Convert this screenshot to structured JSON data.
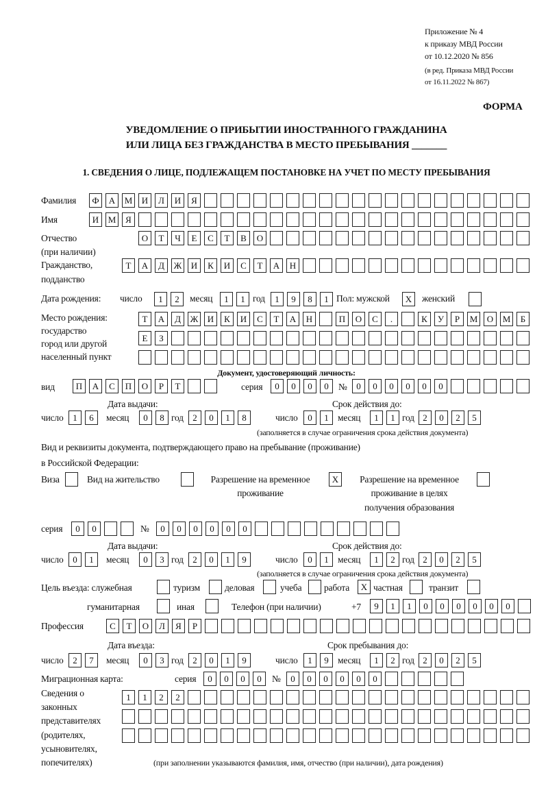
{
  "header": {
    "appendix": [
      "Приложение № 4",
      "к приказу МВД России",
      "от 10.12.2020 № 856"
    ],
    "edition": [
      "(в ред. Приказа МВД России",
      "от 16.11.2022 № 867)"
    ],
    "forma": "ФОРМА",
    "title1": "УВЕДОМЛЕНИЕ О ПРИБЫТИИ ИНОСТРАННОГО ГРАЖДАНИНА",
    "title2": "ИЛИ ЛИЦА БЕЗ ГРАЖДАНСТВА В МЕСТО ПРЕБЫВАНИЯ _______",
    "section1": "1. СВЕДЕНИЯ О ЛИЦЕ, ПОДЛЕЖАЩЕМ ПОСТАНОВКЕ НА УЧЕТ ПО МЕСТУ ПРЕБЫВАНИЯ"
  },
  "labels": {
    "surname": "Фамилия",
    "name": "Имя",
    "patronymic": "Отчество",
    "patronymic2": "(при наличии)",
    "citizenship": "Гражданство,",
    "citizenship2": "подданство",
    "birth_date": "Дата рождения:",
    "day": "число",
    "month": "месяц",
    "year": "год",
    "sex": "Пол: мужской",
    "female": "женский",
    "birthplace": [
      "Место рождения:",
      "государство",
      "город или другой",
      "населенный пункт"
    ],
    "id_doc": "Документ, удостоверяющий личность:",
    "kind": "вид",
    "series": "серия",
    "number": "№",
    "issue_date": "Дата выдачи:",
    "valid_until": "Срок действия до:",
    "valid_note": "(заполняется в случае ограничения срока действия документа)",
    "right_doc1": "Вид и реквизиты документа, подтверждающего право на пребывание (проживание)",
    "right_doc2": "в Российской Федерации:",
    "visa": "Виза",
    "residence": "Вид на жительство",
    "temp_res1": "Разрешение на временное",
    "temp_res2": "проживание",
    "temp_edu1": "Разрешение на временное",
    "temp_edu2": "проживание в целях",
    "temp_edu3": "получения образования",
    "purpose": "Цель въезда: служебная",
    "tourism": "туризм",
    "business": "деловая",
    "study": "учеба",
    "work": "работа",
    "private": "частная",
    "transit": "транзит",
    "humanitarian": "гуманитарная",
    "other": "иная",
    "phone": "Телефон (при наличии)",
    "phone_prefix": "+7",
    "profession": "Профессия",
    "entry_date": "Дата въезда:",
    "stay_until": "Срок пребывания до:",
    "migration_card": "Миграционная карта:",
    "reps": [
      "Сведения о",
      "законных",
      "представителях",
      "(родителях,",
      "усыновителях,",
      "попечителях)"
    ],
    "reps_note": "(при заполнении указываются фамилия, имя, отчество (при наличии), дата рождения)"
  },
  "fields": {
    "surname": "ФАМИЛИЯ",
    "name": "ИМЯ",
    "patronymic": "ОТЧЕСТВО",
    "citizenship": "ТАДЖИКИСТАН",
    "birth_day": "12",
    "birth_month": "11",
    "birth_year": "1981",
    "sex_male": "X",
    "sex_female": "",
    "birthplace1": "ТАДЖИКИСТАН ПОС. КУРМОМБ",
    "birthplace2": "ЕЗ",
    "birthplace3": "",
    "doc_kind": "ПАСПОРТ",
    "doc_series": "0000",
    "doc_number": "000000",
    "doc_issue_day": "16",
    "doc_issue_month": "08",
    "doc_issue_year": "2018",
    "doc_valid_day": "01",
    "doc_valid_month": "11",
    "doc_valid_year": "2025",
    "visa": "",
    "residence": "",
    "temp_res": "X",
    "temp_edu": "",
    "right_series": "00",
    "right_number": "000000",
    "right_issue_day": "01",
    "right_issue_month": "03",
    "right_issue_year": "2019",
    "right_valid_day": "01",
    "right_valid_month": "12",
    "right_valid_year": "2025",
    "p_service": "",
    "p_tourism": "",
    "p_business": "",
    "p_study": "",
    "p_work": "X",
    "p_private": "",
    "p_transit": "",
    "p_humanitarian": "",
    "p_other": "",
    "phone": "911000000",
    "profession": "СТОЛЯР",
    "entry_day": "27",
    "entry_month": "03",
    "entry_year": "2019",
    "stay_day": "19",
    "stay_month": "12",
    "stay_year": "2025",
    "mc_series": "0000",
    "mc_number": "000000",
    "reps1": "1122",
    "reps2": "",
    "reps3": ""
  }
}
